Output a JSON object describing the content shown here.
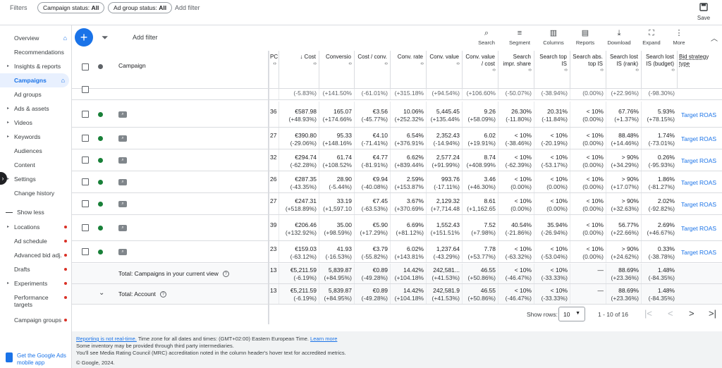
{
  "filter_bar": {
    "label": "Filters",
    "chips": [
      {
        "key": "Campaign status:",
        "value": "All"
      },
      {
        "key": "Ad group status:",
        "value": "All"
      }
    ],
    "add_filter": "Add filter",
    "save_label": "Save"
  },
  "sidebar": {
    "items": [
      {
        "label": "Overview",
        "home": true
      },
      {
        "label": "Recommendations"
      },
      {
        "label": "Insights & reports",
        "arrow": true
      },
      {
        "label": "Campaigns",
        "active": true,
        "home": true
      },
      {
        "label": "Ad groups"
      },
      {
        "label": "Ads & assets",
        "arrow": true
      },
      {
        "label": "Videos",
        "arrow": true
      },
      {
        "label": "Keywords",
        "arrow": true
      },
      {
        "label": "Audiences"
      },
      {
        "label": "Content"
      },
      {
        "label": "Settings",
        "arrow": true
      },
      {
        "label": "Change history"
      }
    ],
    "show_less": "Show less",
    "more_items": [
      {
        "label": "Locations",
        "arrow": true,
        "dot": true
      },
      {
        "label": "Ad schedule",
        "dot": true
      },
      {
        "label": "Advanced bid adj.",
        "dot": true
      },
      {
        "label": "Drafts",
        "dot": true
      },
      {
        "label": "Experiments",
        "arrow": true,
        "dot": true
      },
      {
        "label": "Performance targets",
        "dot": true
      },
      {
        "label": "Campaign groups",
        "dot": true
      }
    ],
    "mobile_app": "Get the Google Ads mobile app"
  },
  "toolbar": {
    "add_filter": "Add filter",
    "tools": [
      {
        "label": "Search",
        "icon": "search-icon",
        "glyph": "⌕"
      },
      {
        "label": "Segment",
        "icon": "segment-icon",
        "glyph": "≡"
      },
      {
        "label": "Columns",
        "icon": "columns-icon",
        "glyph": "▥"
      },
      {
        "label": "Reports",
        "icon": "reports-icon",
        "glyph": "▤"
      },
      {
        "label": "Download",
        "icon": "download-icon",
        "glyph": "⤓"
      },
      {
        "label": "Expand",
        "icon": "expand-icon",
        "glyph": "⛶"
      },
      {
        "label": "More",
        "icon": "more-icon",
        "glyph": "⋮"
      }
    ]
  },
  "table": {
    "campaign_header": "Campaign",
    "columns": [
      {
        "label": "PC",
        "sort": true
      },
      {
        "label": "↓ Cost",
        "sort": true
      },
      {
        "label": "Conversio",
        "sort": true
      },
      {
        "label": "Cost / conv.",
        "sort": true
      },
      {
        "label": "Conv. rate",
        "sort": true
      },
      {
        "label": "Conv. value",
        "sort": true
      },
      {
        "label": "Conv. value / cost",
        "sort": true
      },
      {
        "label": "Search impr. share",
        "sort": true
      },
      {
        "label": "Search top IS",
        "sort": true
      },
      {
        "label": "Search abs. top IS",
        "sort": true
      },
      {
        "label": "Search lost IS (rank)",
        "sort": true
      },
      {
        "label": "Search lost IS (budget)",
        "sort": true
      },
      {
        "label": "Bid strategy type",
        "sort": false
      }
    ],
    "partial_row": [
      "(-5.83%)",
      "(+141.50%",
      "(-61.01%)",
      "(+315.18%",
      "(+94.54%)",
      "(+106.60%",
      "(-50.07%)",
      "(-38.94%)",
      "(0.00%)",
      "(+22.96%)",
      "(-98.30%)"
    ],
    "rows": [
      {
        "pc": "36",
        "cells": [
          [
            "€587.98",
            "(+48.93%)"
          ],
          [
            "165.07",
            "(+174.66%"
          ],
          [
            "€3.56",
            "(-45.77%)"
          ],
          [
            "10.06%",
            "(+252.32%"
          ],
          [
            "5,445.45",
            "(+135.44%"
          ],
          [
            "9.26",
            "(+58.09%)"
          ],
          [
            "26.30%",
            "(-11.80%)"
          ],
          [
            "20.31%",
            "(-11.84%)"
          ],
          [
            "< 10%",
            "(0.00%)"
          ],
          [
            "67.76%",
            "(+1.37%)"
          ],
          [
            "5.93%",
            "(+78.15%)"
          ]
        ],
        "bid": "Target ROAS"
      },
      {
        "pc": "27",
        "cells": [
          [
            "€390.80",
            "(-29.06%)"
          ],
          [
            "95.33",
            "(+148.16%"
          ],
          [
            "€4.10",
            "(-71.41%)"
          ],
          [
            "6.54%",
            "(+376.91%"
          ],
          [
            "2,352.43",
            "(-14.94%)"
          ],
          [
            "6.02",
            "(+19.91%)"
          ],
          [
            "< 10%",
            "(-38.46%)"
          ],
          [
            "< 10%",
            "(-20.19%)"
          ],
          [
            "< 10%",
            "(0.00%)"
          ],
          [
            "88.48%",
            "(+14.46%)"
          ],
          [
            "1.74%",
            "(-73.01%)"
          ]
        ],
        "bid": "Target ROAS"
      },
      {
        "pc": "32",
        "cells": [
          [
            "€294.74",
            "(-62.28%)"
          ],
          [
            "61.74",
            "(+108.52%"
          ],
          [
            "€4.77",
            "(-81.91%)"
          ],
          [
            "6.62%",
            "(+839.44%"
          ],
          [
            "2,577.24",
            "(+91.99%)"
          ],
          [
            "8.74",
            "(+408.99%"
          ],
          [
            "< 10%",
            "(-62.39%)"
          ],
          [
            "< 10%",
            "(-53.17%)"
          ],
          [
            "< 10%",
            "(0.00%)"
          ],
          [
            "> 90%",
            "(+34.29%)"
          ],
          [
            "0.26%",
            "(-95.93%)"
          ]
        ],
        "bid": "Target ROAS"
      },
      {
        "pc": "26",
        "cells": [
          [
            "€287.35",
            "(-43.35%)"
          ],
          [
            "28.90",
            "(-5.44%)"
          ],
          [
            "€9.94",
            "(-40.08%)"
          ],
          [
            "2.59%",
            "(+153.87%"
          ],
          [
            "993.76",
            "(-17.11%)"
          ],
          [
            "3.46",
            "(+46.30%)"
          ],
          [
            "< 10%",
            "(0.00%)"
          ],
          [
            "< 10%",
            "(0.00%)"
          ],
          [
            "< 10%",
            "(0.00%)"
          ],
          [
            "> 90%",
            "(+17.07%)"
          ],
          [
            "1.86%",
            "(-81.27%)"
          ]
        ],
        "bid": "Target ROAS"
      },
      {
        "pc": "27",
        "cells": [
          [
            "€247.31",
            "(+518.89%)"
          ],
          [
            "33.19",
            "(+1,597.10"
          ],
          [
            "€7.45",
            "(-63.53%)"
          ],
          [
            "3.67%",
            "(+370.69%"
          ],
          [
            "2,129.32",
            "(+7,714.48"
          ],
          [
            "8.61",
            "(+1,162.65"
          ],
          [
            "< 10%",
            "(0.00%)"
          ],
          [
            "< 10%",
            "(0.00%)"
          ],
          [
            "< 10%",
            "(0.00%)"
          ],
          [
            "> 90%",
            "(+32.63%)"
          ],
          [
            "2.02%",
            "(-92.82%)"
          ]
        ],
        "bid": "Target ROAS"
      },
      {
        "pc": "39",
        "cells": [
          [
            "€206.46",
            "(+132.92%)"
          ],
          [
            "35.00",
            "(+98.59%)"
          ],
          [
            "€5.90",
            "(+17.29%)"
          ],
          [
            "6.69%",
            "(+81.12%)"
          ],
          [
            "1,552.43",
            "(+151.51%"
          ],
          [
            "7.52",
            "(+7.98%)"
          ],
          [
            "40.54%",
            "(-21.86%)"
          ],
          [
            "35.94%",
            "(-26.94%)"
          ],
          [
            "< 10%",
            "(0.00%)"
          ],
          [
            "56.77%",
            "(+22.66%)"
          ],
          [
            "2.69%",
            "(+46.67%)"
          ]
        ],
        "bid": "Target ROAS"
      },
      {
        "pc": "23",
        "cells": [
          [
            "€159.03",
            "(-63.12%)"
          ],
          [
            "41.93",
            "(-16.53%)"
          ],
          [
            "€3.79",
            "(-55.82%)"
          ],
          [
            "6.02%",
            "(+143.81%"
          ],
          [
            "1,237.64",
            "(-43.29%)"
          ],
          [
            "7.78",
            "(+53.77%)"
          ],
          [
            "< 10%",
            "(-63.32%)"
          ],
          [
            "< 10%",
            "(-53.04%)"
          ],
          [
            "< 10%",
            "(0.00%)"
          ],
          [
            "> 90%",
            "(+24.62%)"
          ],
          [
            "0.33%",
            "(-38.78%)"
          ]
        ],
        "bid": "Target ROAS"
      }
    ],
    "totals": [
      {
        "label": "Total: Campaigns in your current view",
        "pc": "13",
        "cells": [
          [
            "€5,211.59",
            "(-6.19%)"
          ],
          [
            "5,839.87",
            "(+84.95%)"
          ],
          [
            "€0.89",
            "(-49.28%)"
          ],
          [
            "14.42%",
            "(+104.18%"
          ],
          [
            "242,581...",
            "(+41.53%)"
          ],
          [
            "46.55",
            "(+50.86%)"
          ],
          [
            "< 10%",
            "(-46.47%)"
          ],
          [
            "< 10%",
            "(-33.33%)"
          ],
          [
            "—",
            ""
          ],
          [
            "88.69%",
            "(+23.36%)"
          ],
          [
            "1.48%",
            "(-84.35%)"
          ]
        ]
      },
      {
        "label": "Total: Account",
        "pc": "13",
        "cells": [
          [
            "€5,211.59",
            "(-6.19%)"
          ],
          [
            "5,839.87",
            "(+84.95%)"
          ],
          [
            "€0.89",
            "(-49.28%)"
          ],
          [
            "14.42%",
            "(+104.18%"
          ],
          [
            "242,581.9",
            "(+41.53%)"
          ],
          [
            "46.55",
            "(+50.86%)"
          ],
          [
            "< 10%",
            "(-46.47%)"
          ],
          [
            "< 10%",
            "(-33.33%)"
          ],
          [
            "—",
            ""
          ],
          [
            "88.69%",
            "(+23.36%)"
          ],
          [
            "1.48%",
            "(-84.35%)"
          ]
        ]
      }
    ]
  },
  "pagination": {
    "show_rows_label": "Show rows:",
    "rows_value": "10",
    "range": "1 - 10 of 16"
  },
  "footer": {
    "not_realtime_link": "Reporting is not real-time.",
    "timezone": " Time zone for all dates and times: (GMT+02:00) Eastern European Time. ",
    "learn_more": "Learn more",
    "line2": "Some inventory may be provided through third party intermediaries.",
    "line3": "You'll see Media Rating Council (MRC) accreditation noted in the column header's hover text for accredited metrics.",
    "copyright": "© Google, 2024."
  },
  "colors": {
    "accent": "#1a73e8",
    "enabled": "#188038",
    "alert": "#d93025"
  }
}
